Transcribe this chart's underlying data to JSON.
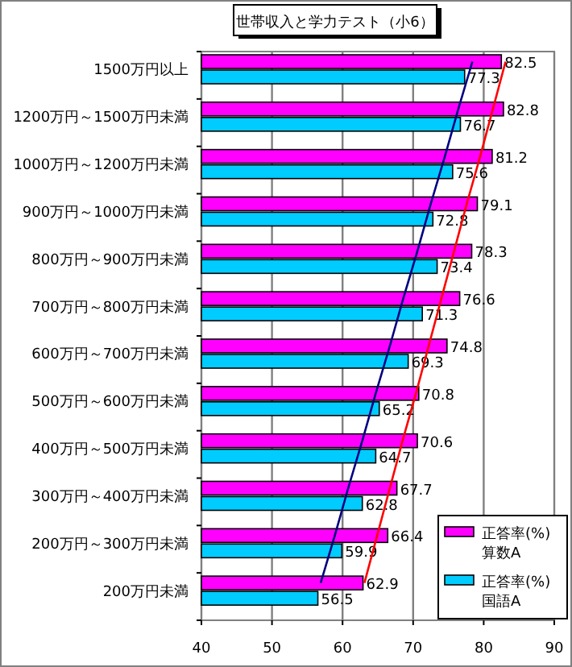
{
  "chart_data": {
    "type": "bar",
    "orientation": "horizontal",
    "title": "世帯収入と学力テスト（小6）",
    "categories": [
      "1500万円以上",
      "1200万円～1500万円未満",
      "1000万円～1200万円未満",
      "900万円～1000万円未満",
      "800万円～900万円未満",
      "700万円～800万円未満",
      "600万円～700万円未満",
      "500万円～600万円未満",
      "400万円～500万円未満",
      "300万円～400万円未満",
      "200万円～300万円未満",
      "200万円未満"
    ],
    "series": [
      {
        "name": "正答率(%)\n算数A",
        "color": "#ff00ff",
        "values": [
          82.5,
          82.8,
          81.2,
          79.1,
          78.3,
          76.6,
          74.8,
          70.8,
          70.6,
          67.7,
          66.4,
          62.9
        ],
        "value_labels": [
          "82.5",
          "82.8",
          "81.2",
          "79.1",
          "78.3",
          "76.6",
          "74.8",
          "70.8",
          "70.6",
          "67.7",
          "66.4",
          "62.9"
        ]
      },
      {
        "name": "正答率(%)\n国語A",
        "color": "#00ccff",
        "values": [
          77.3,
          76.7,
          75.6,
          72.8,
          73.4,
          71.3,
          69.3,
          65.2,
          64.7,
          62.8,
          59.9,
          56.5
        ],
        "value_labels": [
          "77.3",
          "76.7",
          "75.6",
          "72.8",
          "73.4",
          "71.3",
          "69.3",
          "65.2",
          "64.7",
          "62.8",
          "59.9",
          "56.5"
        ]
      },
      {
        "type": "line",
        "color": "#ff0000",
        "values": [
          83.1,
          81.3,
          79.5,
          77.6,
          75.8,
          74.0,
          72.2,
          70.4,
          68.5,
          66.7,
          64.9,
          63.1
        ]
      },
      {
        "type": "line",
        "color": "#000080",
        "values": [
          78.4,
          76.4,
          74.5,
          72.5,
          70.6,
          68.6,
          66.7,
          64.7,
          62.8,
          60.8,
          58.9,
          56.9
        ]
      }
    ],
    "xlim": [
      40,
      90
    ],
    "xticks": [
      40,
      50,
      60,
      70,
      80,
      90
    ],
    "grid": "x",
    "legend": "bottom right"
  }
}
